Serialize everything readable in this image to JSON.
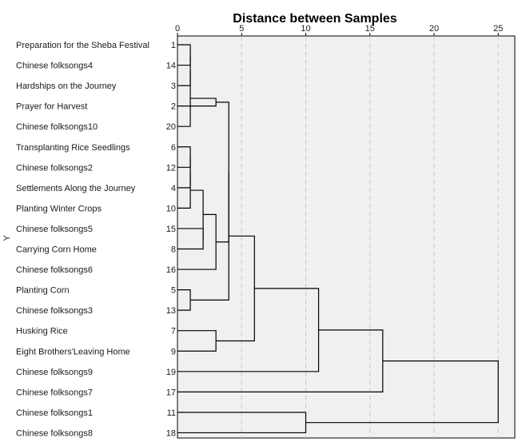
{
  "chart_data": {
    "type": "dendrogram",
    "title": "Distance between Samples",
    "ylabel": "Y",
    "xlim": [
      0,
      26
    ],
    "xticks": [
      0,
      5,
      10,
      15,
      20,
      25
    ],
    "grid": true,
    "leaves": [
      {
        "label": "Preparation for the Sheba Festival",
        "id": "1"
      },
      {
        "label": "Chinese folksongs4",
        "id": "14"
      },
      {
        "label": "Hardships on the Journey",
        "id": "3"
      },
      {
        "label": "Prayer for Harvest",
        "id": "2"
      },
      {
        "label": "Chinese folksongs10",
        "id": "20"
      },
      {
        "label": "Transplanting Rice Seedlings",
        "id": "6"
      },
      {
        "label": "Chinese folksongs2",
        "id": "12"
      },
      {
        "label": "Settlements Along the Journey",
        "id": "4"
      },
      {
        "label": "Planting Winter Crops",
        "id": "10"
      },
      {
        "label": "Chinese folksongs5",
        "id": "15"
      },
      {
        "label": "Carrying Corn Home",
        "id": "8"
      },
      {
        "label": "Chinese folksongs6",
        "id": "16"
      },
      {
        "label": "Planting Corn",
        "id": "5"
      },
      {
        "label": "Chinese folksongs3",
        "id": "13"
      },
      {
        "label": "Husking Rice",
        "id": "7"
      },
      {
        "label": "Eight Brothers'Leaving Home",
        "id": "9"
      },
      {
        "label": "Chinese folksongs9",
        "id": "19"
      },
      {
        "label": "Chinese folksongs7",
        "id": "17"
      },
      {
        "label": "Chinese folksongs1",
        "id": "11"
      },
      {
        "label": "Chinese folksongs8",
        "id": "18"
      }
    ],
    "merges": [
      {
        "a": 0,
        "b": 1,
        "distance": 1
      },
      {
        "a": 20,
        "b": 2,
        "distance": 1
      },
      {
        "a": 21,
        "b": 4,
        "distance": 1
      },
      {
        "a": 5,
        "b": 6,
        "distance": 1
      },
      {
        "a": 23,
        "b": 7,
        "distance": 1
      },
      {
        "a": 24,
        "b": 8,
        "distance": 1
      },
      {
        "a": 12,
        "b": 13,
        "distance": 1
      },
      {
        "a": 9,
        "b": 10,
        "distance": 2
      },
      {
        "a": 25,
        "b": 27,
        "distance": 2
      },
      {
        "a": 22,
        "b": 3,
        "distance": 3
      },
      {
        "a": 28,
        "b": 11,
        "distance": 3
      },
      {
        "a": 14,
        "b": 15,
        "distance": 3
      },
      {
        "a": 29,
        "b": 30,
        "distance": 4
      },
      {
        "a": 32,
        "b": 26,
        "distance": 4
      },
      {
        "a": 33,
        "b": 31,
        "distance": 6
      },
      {
        "a": 34,
        "b": 16,
        "distance": 11
      },
      {
        "a": 35,
        "b": 17,
        "distance": 16
      },
      {
        "a": 18,
        "b": 19,
        "distance": 10
      },
      {
        "a": 36,
        "b": 37,
        "distance": 25
      }
    ]
  }
}
